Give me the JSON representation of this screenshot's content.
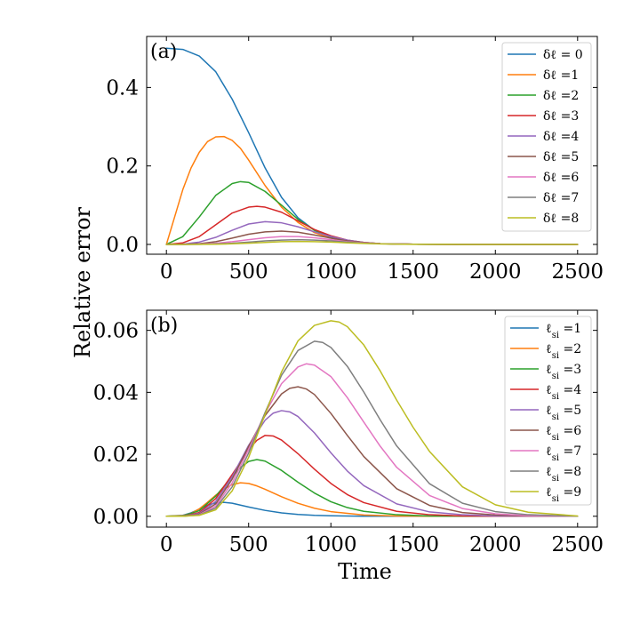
{
  "chart_data": [
    {
      "type": "line",
      "panel_label": "(a)",
      "xlim": [
        -120,
        2620
      ],
      "ylim": [
        -0.025,
        0.53
      ],
      "xticks": [
        0,
        500,
        1000,
        1500,
        2000,
        2500
      ],
      "xtick_labels": [
        "0",
        "500",
        "1000",
        "1500",
        "2000",
        "2500"
      ],
      "yticks": [
        0.0,
        0.2,
        0.4
      ],
      "ytick_labels": [
        "0.0",
        "0.2",
        "0.4"
      ],
      "grid": false,
      "legend_position": "top-right",
      "series": [
        {
          "name": "δℓ = 0",
          "color": "#1f77b4",
          "x": [
            0,
            100,
            200,
            300,
            400,
            500,
            600,
            700,
            800,
            900,
            1000,
            1100,
            1200,
            1300,
            1400,
            1500,
            1600,
            1800,
            2000,
            2500
          ],
          "y": [
            0.5,
            0.497,
            0.48,
            0.44,
            0.37,
            0.285,
            0.195,
            0.12,
            0.068,
            0.036,
            0.018,
            0.009,
            0.004,
            0.002,
            0.001,
            0.0005,
            0.0002,
            0,
            0,
            0
          ]
        },
        {
          "name": "δℓ =1",
          "color": "#ff7f0e",
          "x": [
            0,
            50,
            100,
            150,
            200,
            250,
            300,
            350,
            400,
            450,
            500,
            600,
            700,
            800,
            900,
            1000,
            1100,
            1200,
            1300,
            1500,
            1800,
            2500
          ],
          "y": [
            0,
            0.07,
            0.14,
            0.195,
            0.235,
            0.262,
            0.274,
            0.275,
            0.265,
            0.245,
            0.215,
            0.15,
            0.095,
            0.056,
            0.03,
            0.016,
            0.008,
            0.004,
            0.002,
            0.0005,
            0,
            0
          ]
        },
        {
          "name": "δℓ =2",
          "color": "#2ca02c",
          "x": [
            0,
            100,
            200,
            300,
            400,
            450,
            500,
            600,
            700,
            800,
            900,
            1000,
            1100,
            1200,
            1300,
            1500,
            1800,
            2500
          ],
          "y": [
            0,
            0.02,
            0.07,
            0.125,
            0.155,
            0.16,
            0.158,
            0.135,
            0.1,
            0.064,
            0.036,
            0.019,
            0.009,
            0.004,
            0.002,
            0.0005,
            0,
            0
          ]
        },
        {
          "name": "δℓ =3",
          "color": "#d62728",
          "x": [
            0,
            100,
            200,
            300,
            400,
            500,
            550,
            600,
            700,
            800,
            900,
            1000,
            1100,
            1200,
            1300,
            1500,
            1800,
            2500
          ],
          "y": [
            0,
            0.004,
            0.02,
            0.05,
            0.08,
            0.095,
            0.097,
            0.095,
            0.082,
            0.06,
            0.038,
            0.022,
            0.011,
            0.005,
            0.002,
            0.0005,
            0,
            0
          ]
        },
        {
          "name": "δℓ =4",
          "color": "#9467bd",
          "x": [
            0,
            100,
            200,
            300,
            400,
            500,
            600,
            700,
            800,
            900,
            1000,
            1100,
            1200,
            1300,
            1500,
            1800,
            2500
          ],
          "y": [
            0,
            0.0008,
            0.006,
            0.018,
            0.036,
            0.052,
            0.058,
            0.055,
            0.045,
            0.032,
            0.02,
            0.011,
            0.005,
            0.002,
            0.0005,
            0,
            0
          ]
        },
        {
          "name": "δℓ =5",
          "color": "#8c564b",
          "x": [
            0,
            100,
            200,
            300,
            400,
            500,
            600,
            700,
            800,
            900,
            1000,
            1100,
            1200,
            1300,
            1500,
            1800,
            2500
          ],
          "y": [
            0,
            0.0002,
            0.002,
            0.007,
            0.016,
            0.026,
            0.032,
            0.034,
            0.031,
            0.024,
            0.016,
            0.009,
            0.005,
            0.002,
            0.0005,
            0,
            0
          ]
        },
        {
          "name": "δℓ =6",
          "color": "#e377c2",
          "x": [
            0,
            100,
            200,
            300,
            400,
            500,
            600,
            700,
            800,
            900,
            1000,
            1100,
            1200,
            1300,
            1500,
            1800,
            2500
          ],
          "y": [
            0,
            0,
            0.0008,
            0.003,
            0.007,
            0.012,
            0.017,
            0.02,
            0.02,
            0.017,
            0.012,
            0.007,
            0.004,
            0.002,
            0.0005,
            0,
            0
          ]
        },
        {
          "name": "δℓ =7",
          "color": "#7f7f7f",
          "x": [
            0,
            100,
            200,
            300,
            400,
            500,
            600,
            700,
            800,
            900,
            1000,
            1100,
            1200,
            1300,
            1500,
            1800,
            2500
          ],
          "y": [
            0,
            0,
            0.0003,
            0.0012,
            0.003,
            0.006,
            0.009,
            0.011,
            0.012,
            0.011,
            0.009,
            0.006,
            0.003,
            0.0015,
            0.0004,
            0,
            0
          ]
        },
        {
          "name": "δℓ =8",
          "color": "#bcbd22",
          "x": [
            0,
            100,
            200,
            300,
            400,
            500,
            600,
            700,
            800,
            900,
            1000,
            1100,
            1200,
            1300,
            1500,
            1800,
            2500
          ],
          "y": [
            0,
            0,
            0.0001,
            0.0005,
            0.0015,
            0.003,
            0.005,
            0.007,
            0.0075,
            0.007,
            0.006,
            0.004,
            0.0025,
            0.0012,
            0.0003,
            0,
            0
          ]
        }
      ]
    },
    {
      "type": "line",
      "panel_label": "(b)",
      "xlim": [
        -120,
        2620
      ],
      "ylim": [
        -0.0035,
        0.0665
      ],
      "xticks": [
        0,
        500,
        1000,
        1500,
        2000,
        2500
      ],
      "xtick_labels": [
        "0",
        "500",
        "1000",
        "1500",
        "2000",
        "2500"
      ],
      "yticks": [
        0.0,
        0.02,
        0.04,
        0.06
      ],
      "ytick_labels": [
        "0.00",
        "0.02",
        "0.04",
        "0.06"
      ],
      "xlabel": "Time",
      "grid": false,
      "legend_position": "top-right",
      "series": [
        {
          "name": "ℓ_si =1",
          "color": "#1f77b4",
          "x": [
            0,
            100,
            150,
            200,
            250,
            300,
            350,
            400,
            450,
            500,
            600,
            700,
            800,
            900,
            1000,
            1200,
            1500,
            2500
          ],
          "y": [
            0,
            0.0003,
            0.0011,
            0.0023,
            0.0036,
            0.0043,
            0.0045,
            0.0042,
            0.0036,
            0.003,
            0.0019,
            0.0011,
            0.0006,
            0.0003,
            0.00015,
            0,
            0,
            0
          ]
        },
        {
          "name": "ℓ_si =2",
          "color": "#ff7f0e",
          "x": [
            0,
            100,
            150,
            200,
            250,
            300,
            350,
            400,
            450,
            500,
            550,
            600,
            700,
            800,
            900,
            1000,
            1200,
            1400,
            1600,
            2500
          ],
          "y": [
            0,
            0.0002,
            0.0009,
            0.0024,
            0.0045,
            0.0068,
            0.0088,
            0.0102,
            0.0108,
            0.0106,
            0.0098,
            0.0087,
            0.0063,
            0.0042,
            0.0026,
            0.0015,
            0.0004,
            0.0001,
            0,
            0
          ]
        },
        {
          "name": "ℓ_si =3",
          "color": "#2ca02c",
          "x": [
            0,
            100,
            200,
            300,
            400,
            450,
            500,
            550,
            600,
            700,
            800,
            900,
            1000,
            1100,
            1200,
            1400,
            1600,
            1800,
            2500
          ],
          "y": [
            0,
            0.0001,
            0.0018,
            0.0065,
            0.0128,
            0.0157,
            0.0177,
            0.0183,
            0.0178,
            0.0148,
            0.011,
            0.0075,
            0.0047,
            0.0028,
            0.0016,
            0.0005,
            0.0001,
            0,
            0
          ]
        },
        {
          "name": "ℓ_si =4",
          "color": "#d62728",
          "x": [
            0,
            100,
            200,
            300,
            400,
            500,
            550,
            600,
            650,
            700,
            800,
            900,
            1000,
            1100,
            1200,
            1400,
            1600,
            1800,
            2000,
            2500
          ],
          "y": [
            0,
            0,
            0.0012,
            0.0057,
            0.0135,
            0.0215,
            0.0245,
            0.0261,
            0.0259,
            0.0246,
            0.0202,
            0.0152,
            0.0106,
            0.007,
            0.0044,
            0.0016,
            0.0005,
            0.0001,
            0,
            0
          ]
        },
        {
          "name": "ℓ_si =5",
          "color": "#9467bd",
          "x": [
            0,
            100,
            200,
            300,
            400,
            500,
            600,
            650,
            700,
            750,
            800,
            900,
            1000,
            1100,
            1200,
            1400,
            1600,
            1800,
            2000,
            2500
          ],
          "y": [
            0,
            0,
            0.0009,
            0.0048,
            0.0128,
            0.0229,
            0.031,
            0.0333,
            0.0341,
            0.0337,
            0.0322,
            0.0269,
            0.0205,
            0.0146,
            0.0099,
            0.004,
            0.0014,
            0.0005,
            0.0001,
            0
          ]
        },
        {
          "name": "ℓ_si =6",
          "color": "#8c564b",
          "x": [
            0,
            100,
            200,
            300,
            400,
            500,
            600,
            700,
            750,
            800,
            850,
            900,
            1000,
            1100,
            1200,
            1400,
            1600,
            1800,
            2000,
            2200,
            2500
          ],
          "y": [
            0,
            0,
            0.0007,
            0.004,
            0.012,
            0.0225,
            0.0325,
            0.0395,
            0.0413,
            0.0418,
            0.0411,
            0.0393,
            0.0332,
            0.0261,
            0.0193,
            0.0089,
            0.0035,
            0.0012,
            0.0004,
            0.0001,
            0
          ]
        },
        {
          "name": "ℓ_si =7",
          "color": "#e377c2",
          "x": [
            0,
            100,
            200,
            300,
            400,
            500,
            600,
            700,
            800,
            850,
            900,
            1000,
            1100,
            1200,
            1300,
            1400,
            1600,
            1800,
            2000,
            2200,
            2500
          ],
          "y": [
            0,
            0,
            0.0005,
            0.0033,
            0.0108,
            0.0216,
            0.0332,
            0.0428,
            0.0482,
            0.0492,
            0.0488,
            0.0451,
            0.0383,
            0.0304,
            0.0226,
            0.0158,
            0.0067,
            0.0025,
            0.0008,
            0.0002,
            0
          ]
        },
        {
          "name": "ℓ_si =8",
          "color": "#7f7f7f",
          "x": [
            0,
            100,
            200,
            300,
            400,
            500,
            600,
            700,
            800,
            900,
            950,
            1000,
            1100,
            1200,
            1300,
            1400,
            1600,
            1800,
            2000,
            2200,
            2500
          ],
          "y": [
            0,
            0,
            0.0004,
            0.0027,
            0.0095,
            0.0204,
            0.0335,
            0.0455,
            0.0535,
            0.0565,
            0.0561,
            0.0545,
            0.0484,
            0.0401,
            0.0311,
            0.0227,
            0.0105,
            0.0042,
            0.0015,
            0.0005,
            0
          ]
        },
        {
          "name": "ℓ_si =9",
          "color": "#bcbd22",
          "x": [
            0,
            100,
            200,
            300,
            400,
            500,
            600,
            700,
            800,
            900,
            1000,
            1050,
            1100,
            1200,
            1300,
            1400,
            1500,
            1600,
            1800,
            2000,
            2200,
            2500
          ],
          "y": [
            0,
            0,
            0.0003,
            0.0021,
            0.0082,
            0.019,
            0.0329,
            0.0466,
            0.0566,
            0.0616,
            0.0631,
            0.0627,
            0.0612,
            0.0553,
            0.0469,
            0.0375,
            0.0287,
            0.0209,
            0.0095,
            0.0037,
            0.0013,
            0.0001
          ]
        }
      ]
    }
  ],
  "ylabel": "Relative error"
}
